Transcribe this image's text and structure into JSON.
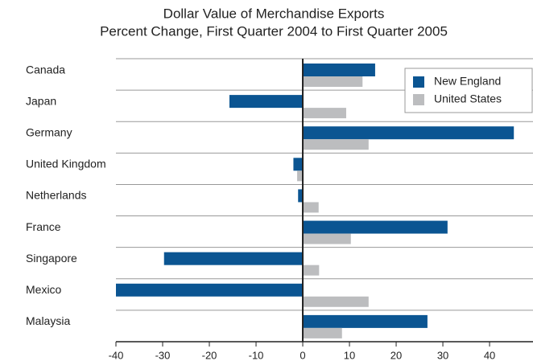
{
  "chart_data": {
    "type": "hbar",
    "title": "Dollar Value of Merchandise Exports",
    "subtitle": "Percent Change, First Quarter 2004 to First Quarter 2005",
    "categories": [
      "Canada",
      "Japan",
      "Germany",
      "United Kingdom",
      "Netherlands",
      "France",
      "Singapore",
      "Mexico",
      "Malaysia"
    ],
    "series": [
      {
        "name": "New England",
        "color": "#0b5592",
        "values": [
          15.5,
          -15.7,
          45.2,
          -2,
          -1,
          31,
          -29.7,
          -40,
          26.7
        ]
      },
      {
        "name": "United States",
        "color": "#bcbdbf",
        "values": [
          12.8,
          9.3,
          14.1,
          -1.2,
          3.4,
          10.3,
          3.5,
          14.1,
          8.4
        ]
      }
    ],
    "xlim": [
      -40,
      49.3
    ],
    "xticks": [
      -40,
      -30,
      -20,
      -10,
      0,
      10,
      20,
      30,
      40
    ],
    "grid": true,
    "legend": "upper right"
  }
}
